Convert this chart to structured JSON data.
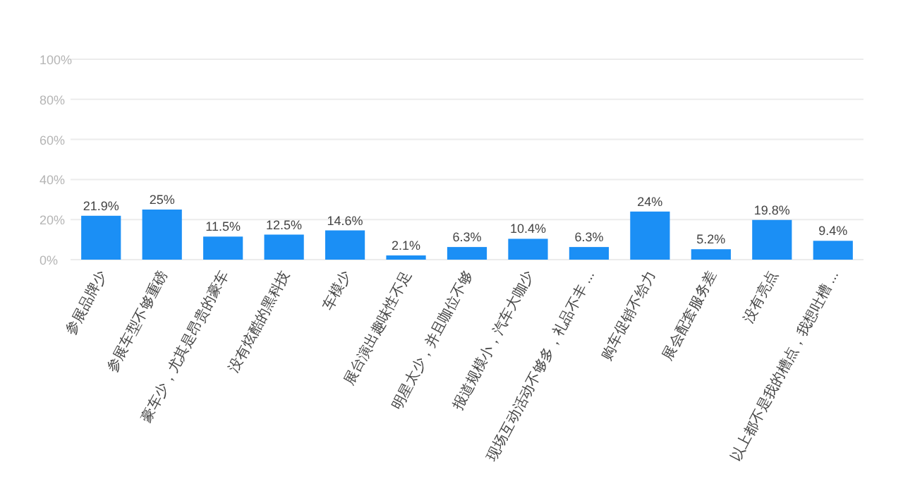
{
  "chart_data": {
    "type": "bar",
    "categories": [
      "参展品牌少",
      "参展车型不够重磅",
      "豪车少，尤其是昂贵的豪车",
      "没有炫酷的黑科技",
      "车模少",
      "展台演出趣味性不足",
      "明星太少，并且咖位不够",
      "报道规模小，汽车大咖少",
      "现场互动活动不够多，礼品不丰 ...",
      "购车促销不给力",
      "展会配套服务差",
      "没有亮点",
      "以上都不是我的槽点，我想吐槽 ..."
    ],
    "series": [
      {
        "color": "#1b8ff5",
        "values": [
          21.9,
          25,
          11.5,
          12.5,
          14.6,
          2.1,
          6.3,
          10.4,
          6.3,
          24,
          5.2,
          19.8,
          9.4
        ],
        "value_labels": [
          "21.9%",
          "25%",
          "11.5%",
          "12.5%",
          "14.6%",
          "2.1%",
          "6.3%",
          "10.4%",
          "6.3%",
          "24%",
          "5.2%",
          "19.8%",
          "9.4%"
        ]
      }
    ],
    "ylim": [
      0,
      100
    ],
    "yticks": [
      {
        "value": 0,
        "label": "0%"
      },
      {
        "value": 20,
        "label": "20%"
      },
      {
        "value": 40,
        "label": "40%"
      },
      {
        "value": 60,
        "label": "60%"
      },
      {
        "value": 80,
        "label": "80%"
      },
      {
        "value": 100,
        "label": "100%"
      }
    ],
    "grid": "y"
  }
}
